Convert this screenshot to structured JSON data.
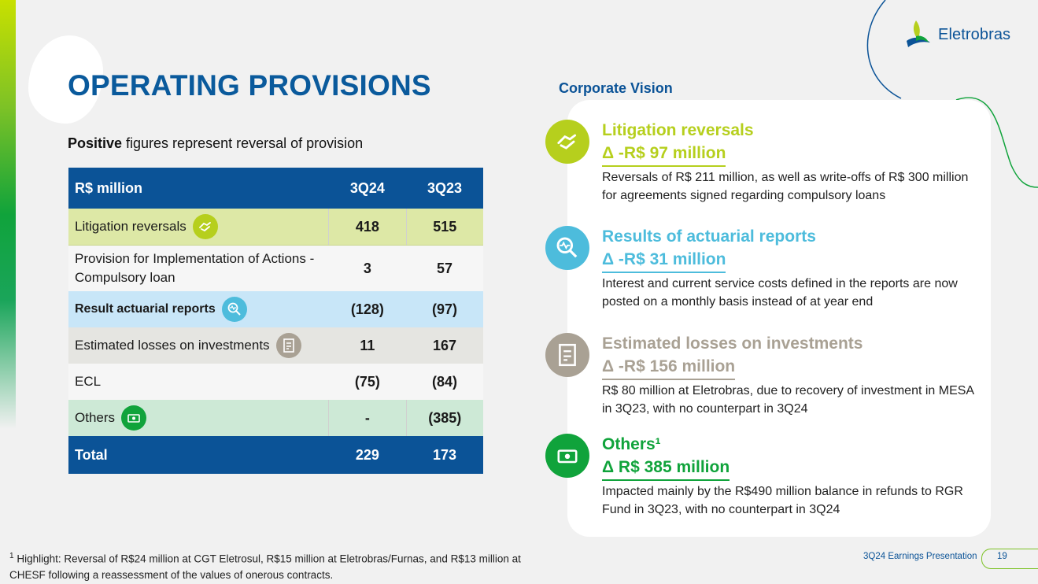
{
  "brand": {
    "name": "Eletrobras",
    "colors": {
      "blue": "#0b5397",
      "lime": "#b6cf1d",
      "teal": "#4dbcdc",
      "gray": "#a9a194",
      "green": "#10a33b"
    }
  },
  "title": "OPERATING PROVISIONS",
  "subtitle": {
    "bold1": "Positive",
    "normal": " figures represent ",
    "bold2": "reversal of provision"
  },
  "table": {
    "header": {
      "label": "R$ million",
      "col1": "3Q24",
      "col2": "3Q23"
    },
    "rows": [
      {
        "label": "Litigation reversals",
        "v1": "418",
        "v2": "515",
        "icon": "handshake-icon"
      },
      {
        "label": "Provision for Implementation of Actions - Compulsory loan",
        "v1": "3",
        "v2": "57"
      },
      {
        "label": "Result actuarial reports",
        "v1": "(128)",
        "v2": "(97)",
        "icon": "magnifier-chart-icon"
      },
      {
        "label": "Estimated losses on investments",
        "v1": "11",
        "v2": "167",
        "icon": "document-icon"
      },
      {
        "label": "ECL",
        "v1": "(75)",
        "v2": "(84)"
      },
      {
        "label": "Others",
        "v1": "-",
        "v2": "(385)",
        "icon": "money-icon"
      }
    ],
    "total": {
      "label": "Total",
      "v1": "229",
      "v2": "173"
    }
  },
  "corporate_vision": {
    "title": "Corporate Vision",
    "items": [
      {
        "heading": "Litigation reversals",
        "delta": "Δ -R$ 97 million",
        "text": "Reversals of R$ 211 million, as well as write-offs of R$ 300 million for agreements signed regarding compulsory loans",
        "color": "#b6cf1d",
        "icon": "handshake-icon"
      },
      {
        "heading": "Results of actuarial reports",
        "delta": "Δ -R$ 31 million",
        "text": "Interest and current service costs defined in the reports are now posted on a monthly basis  instead of at year end",
        "color": "#4dbcdc",
        "icon": "magnifier-chart-icon"
      },
      {
        "heading": "Estimated losses on investments",
        "delta": "Δ -R$ 156 million",
        "text": "R$ 80 million at Eletrobras, due to recovery of investment in MESA in 3Q23, with no counterpart in 3Q24",
        "color": "#a9a194",
        "icon": "document-icon"
      },
      {
        "heading": "Others¹",
        "delta": "Δ R$ 385 million",
        "text": "Impacted mainly by the R$490 million balance in refunds to RGR Fund in 3Q23, with no counterpart in 3Q24",
        "color": "#10a33b",
        "icon": "money-icon"
      }
    ]
  },
  "footnote": {
    "marker": "1",
    "text": "Highlight: Reversal of R$24 million at CGT Eletrosul, R$15 million at Eletrobras/Furnas, and R$13 million at CHESF following a reassessment of the values of onerous contracts."
  },
  "footer": {
    "label": "3Q24 Earnings Presentation",
    "page": "19"
  }
}
